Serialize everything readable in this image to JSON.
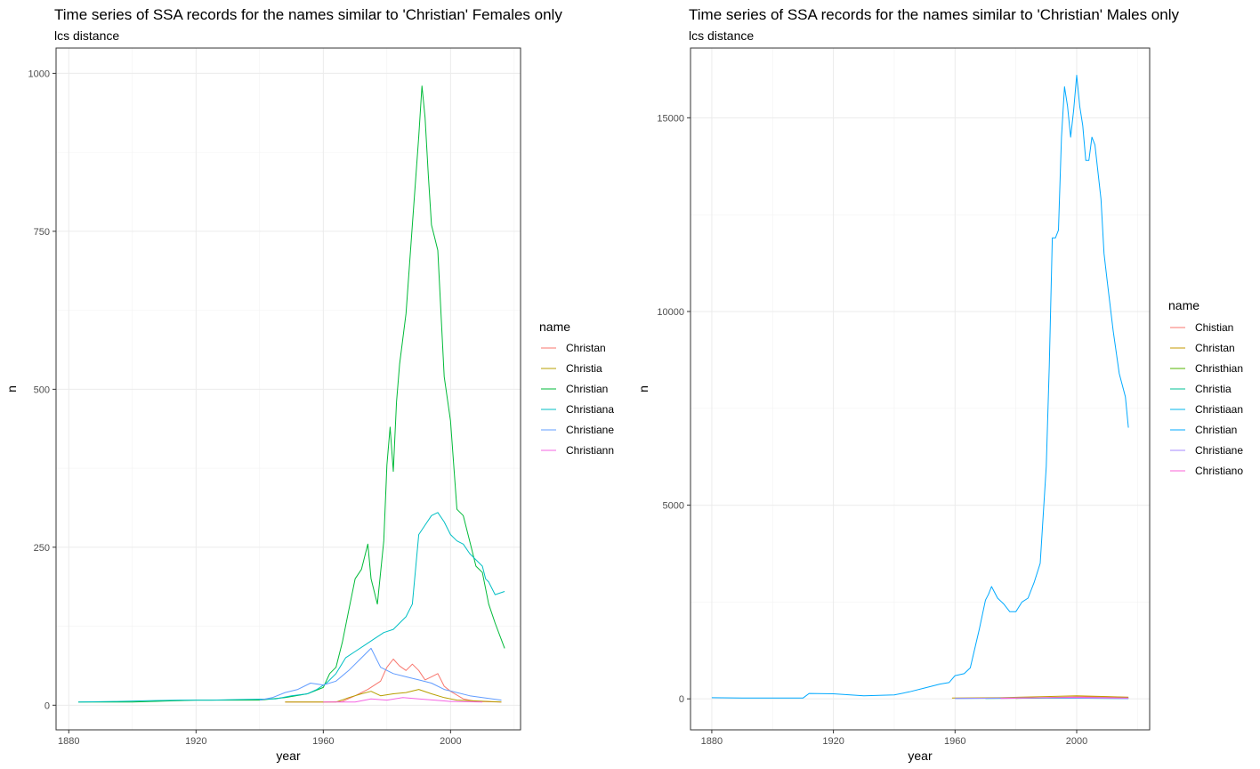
{
  "chart_data": [
    {
      "type": "line",
      "title": "Time series of SSA records for the names similar to 'Christian' Females only",
      "subtitle": "lcs distance",
      "xlabel": "year",
      "ylabel": "n",
      "xlim": [
        1876,
        2022
      ],
      "ylim": [
        -39,
        1040
      ],
      "xticks": [
        1880,
        1920,
        1960,
        2000
      ],
      "yticks": [
        0,
        250,
        500,
        750,
        1000
      ],
      "grid": true,
      "legend_title": "name",
      "legend_position": "right",
      "series": [
        {
          "name": "Christan",
          "color": "#F8766D",
          "x": [
            1948,
            1960,
            1966,
            1970,
            1974,
            1978,
            1980,
            1982,
            1984,
            1986,
            1988,
            1990,
            1992,
            1994,
            1996,
            1998,
            2000,
            2004,
            2008,
            2016
          ],
          "y": [
            5,
            5,
            6,
            15,
            25,
            38,
            60,
            73,
            62,
            55,
            65,
            55,
            40,
            45,
            50,
            30,
            22,
            10,
            6,
            5
          ]
        },
        {
          "name": "Christia",
          "color": "#B79F00",
          "x": [
            1948,
            1964,
            1968,
            1972,
            1975,
            1978,
            1982,
            1986,
            1990,
            1994,
            1998,
            2002,
            2016
          ],
          "y": [
            5,
            5,
            12,
            18,
            22,
            15,
            18,
            20,
            25,
            18,
            12,
            8,
            5
          ]
        },
        {
          "name": "Christian",
          "color": "#00BA38",
          "x": [
            1883,
            1900,
            1920,
            1940,
            1948,
            1955,
            1960,
            1962,
            1964,
            1966,
            1968,
            1970,
            1972,
            1974,
            1975,
            1977,
            1979,
            1980,
            1981,
            1982,
            1983,
            1984,
            1985,
            1986,
            1988,
            1990,
            1991,
            1992,
            1993,
            1994,
            1995,
            1996,
            1998,
            2000,
            2002,
            2004,
            2006,
            2008,
            2010,
            2012,
            2014,
            2017
          ],
          "y": [
            5,
            5,
            8,
            8,
            12,
            18,
            28,
            50,
            60,
            100,
            150,
            200,
            215,
            255,
            200,
            160,
            260,
            380,
            440,
            370,
            480,
            540,
            580,
            620,
            760,
            900,
            980,
            930,
            840,
            760,
            740,
            720,
            520,
            450,
            310,
            300,
            260,
            220,
            210,
            160,
            130,
            90
          ]
        },
        {
          "name": "Christiana",
          "color": "#00BFC4",
          "x": [
            1883,
            1895,
            1905,
            1915,
            1925,
            1935,
            1945,
            1950,
            1955,
            1958,
            1961,
            1964,
            1967,
            1970,
            1973,
            1976,
            1979,
            1982,
            1984,
            1986,
            1988,
            1990,
            1992,
            1994,
            1996,
            1998,
            2000,
            2002,
            2004,
            2006,
            2008,
            2010,
            2011,
            2012,
            2014,
            2017
          ],
          "y": [
            5,
            6,
            7,
            8,
            8,
            9,
            10,
            15,
            18,
            25,
            35,
            50,
            75,
            85,
            95,
            105,
            115,
            120,
            130,
            140,
            160,
            270,
            285,
            300,
            305,
            290,
            270,
            260,
            255,
            240,
            230,
            220,
            200,
            195,
            175,
            180
          ]
        },
        {
          "name": "Christiane",
          "color": "#619CFF",
          "x": [
            1940,
            1944,
            1948,
            1952,
            1956,
            1960,
            1964,
            1968,
            1972,
            1975,
            1978,
            1982,
            1986,
            1990,
            1994,
            1998,
            2002,
            2006,
            2010,
            2016
          ],
          "y": [
            8,
            12,
            20,
            25,
            35,
            32,
            38,
            55,
            75,
            90,
            60,
            50,
            45,
            40,
            35,
            25,
            20,
            15,
            12,
            8
          ]
        },
        {
          "name": "Christiann",
          "color": "#F564E3",
          "x": [
            1960,
            1970,
            1975,
            1980,
            1985,
            1990,
            1995,
            2000,
            2010
          ],
          "y": [
            5,
            5,
            10,
            8,
            12,
            10,
            8,
            6,
            5
          ]
        }
      ]
    },
    {
      "type": "line",
      "title": "Time series of SSA records for the names similar to 'Christian' Males only",
      "subtitle": "lcs distance",
      "xlabel": "year",
      "ylabel": "n",
      "xlim": [
        1873,
        2024
      ],
      "ylim": [
        -800,
        16800
      ],
      "xticks": [
        1880,
        1920,
        1960,
        2000
      ],
      "yticks": [
        0,
        5000,
        10000,
        15000
      ],
      "grid": true,
      "legend_title": "name",
      "legend_position": "right",
      "series": [
        {
          "name": "Chistian",
          "color": "#F8766D",
          "x": [
            1985,
            1995,
            2005,
            2017
          ],
          "y": [
            20,
            40,
            60,
            40
          ]
        },
        {
          "name": "Christan",
          "color": "#C49A00",
          "x": [
            1959,
            1975,
            1990,
            2000,
            2010,
            2017
          ],
          "y": [
            20,
            30,
            60,
            80,
            60,
            40
          ]
        },
        {
          "name": "Christhian",
          "color": "#53B400",
          "x": [
            1980,
            2000,
            2017
          ],
          "y": [
            10,
            40,
            20
          ]
        },
        {
          "name": "Christia",
          "color": "#00C094",
          "x": [
            1970,
            1990,
            2017
          ],
          "y": [
            10,
            20,
            10
          ]
        },
        {
          "name": "Christiaan",
          "color": "#00B6EB",
          "x": [
            1960,
            1990,
            2017
          ],
          "y": [
            10,
            20,
            10
          ]
        },
        {
          "name": "Christian",
          "color": "#00A9FF",
          "x": [
            1880,
            1890,
            1900,
            1910,
            1912,
            1920,
            1930,
            1940,
            1945,
            1950,
            1955,
            1958,
            1960,
            1963,
            1965,
            1968,
            1970,
            1971,
            1972,
            1974,
            1976,
            1978,
            1980,
            1982,
            1984,
            1986,
            1988,
            1990,
            1991,
            1992,
            1993,
            1994,
            1995,
            1996,
            1997,
            1998,
            1999,
            2000,
            2001,
            2002,
            2003,
            2004,
            2005,
            2006,
            2007,
            2008,
            2009,
            2010,
            2012,
            2014,
            2016,
            2017
          ],
          "y": [
            30,
            20,
            20,
            20,
            140,
            130,
            80,
            100,
            180,
            280,
            380,
            420,
            600,
            650,
            800,
            1800,
            2550,
            2700,
            2900,
            2600,
            2450,
            2250,
            2250,
            2500,
            2600,
            3000,
            3500,
            6000,
            8600,
            11900,
            11900,
            12100,
            14500,
            15800,
            15300,
            14500,
            15200,
            16100,
            15300,
            14800,
            13900,
            13900,
            14500,
            14300,
            13600,
            12900,
            11500,
            10800,
            9500,
            8400,
            7800,
            7000
          ]
        },
        {
          "name": "Christiane",
          "color": "#A58AFF",
          "x": [
            1960,
            1990,
            2017
          ],
          "y": [
            10,
            30,
            10
          ]
        },
        {
          "name": "Christiano",
          "color": "#FB61D7",
          "x": [
            1975,
            2000,
            2017
          ],
          "y": [
            10,
            40,
            20
          ]
        }
      ]
    }
  ]
}
